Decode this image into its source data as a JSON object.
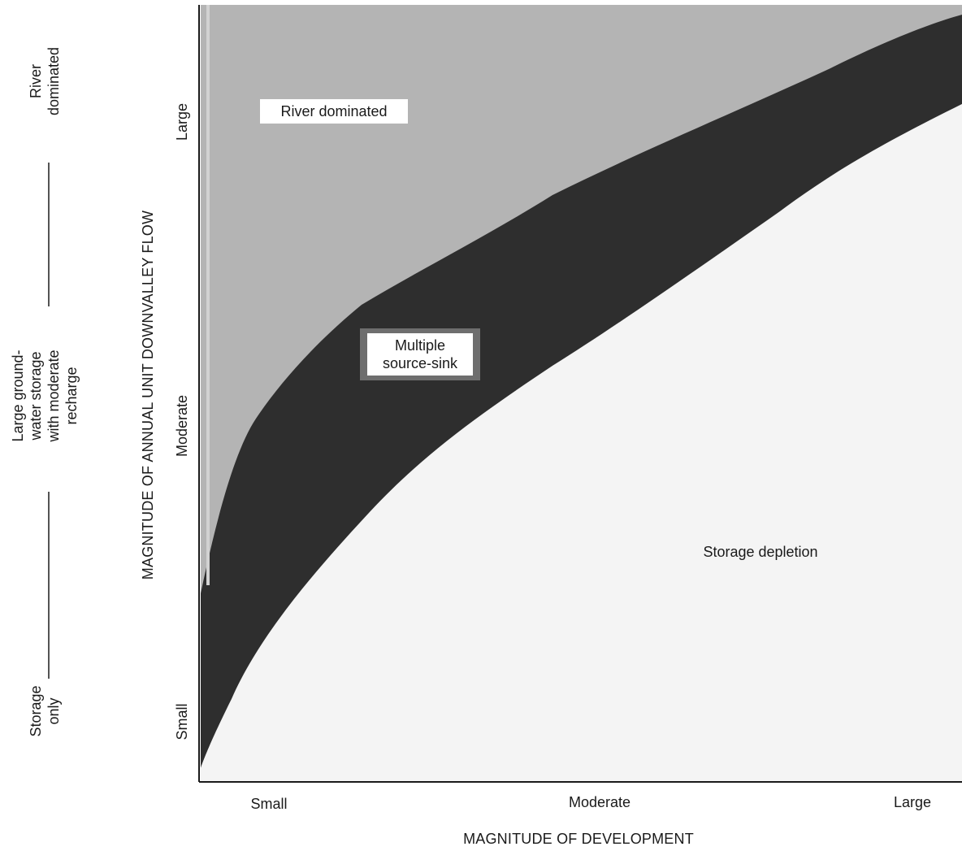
{
  "diagram": {
    "regions": {
      "river_dominated": "River dominated",
      "multiple_source_sink": [
        "Multiple",
        "source-sink"
      ],
      "storage_depletion": "Storage depletion"
    },
    "x_axis": {
      "title": "MAGNITUDE OF DEVELOPMENT",
      "ticks": [
        "Small",
        "Moderate",
        "Large"
      ]
    },
    "y_axis": {
      "title": "MAGNITUDE OF ANNUAL UNIT DOWNVALLEY FLOW",
      "ticks": [
        "Small",
        "Moderate",
        "Large"
      ]
    },
    "side_scale": {
      "top": [
        "River",
        "dominated"
      ],
      "middle": [
        "Large ground-",
        "water storage",
        "with moderate",
        "recharge"
      ],
      "bottom": [
        "Storage",
        "only"
      ]
    },
    "colors": {
      "river_dominated": "#b4b4b4",
      "multiple_source_sink": "#2e2e2e",
      "storage_depletion": "#f4f4f4",
      "label_box": "#ffffff",
      "axis": "#1a1a1a"
    }
  }
}
